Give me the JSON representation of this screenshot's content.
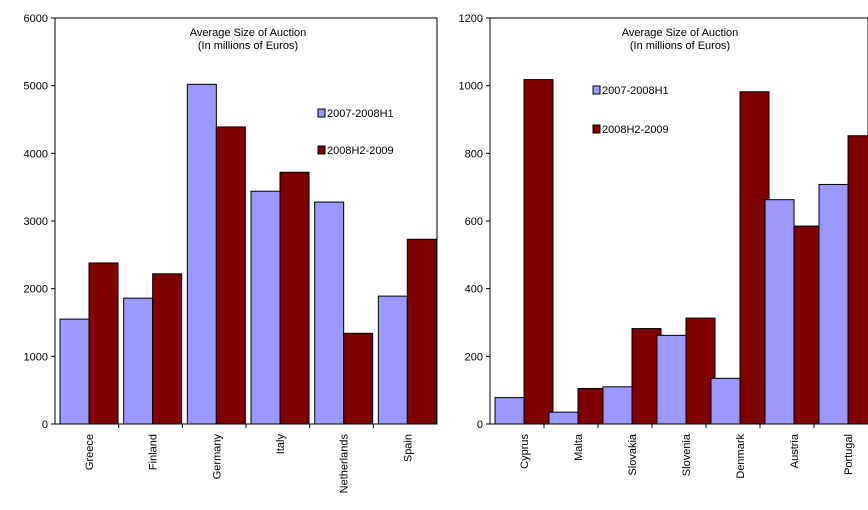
{
  "chart_data": [
    {
      "type": "bar",
      "title": "Average Size of Auction",
      "subtitle": "(In millions of Euros)",
      "categories": [
        "Greece",
        "Finland",
        "Germany",
        "Italy",
        "Netherlands",
        "Spain"
      ],
      "series": [
        {
          "name": "2007-2008H1",
          "values": [
            1550,
            1860,
            5020,
            3440,
            3280,
            1890
          ],
          "color": "#9999ff"
        },
        {
          "name": "2008H2-2009",
          "values": [
            2380,
            2220,
            4390,
            3720,
            1340,
            2730
          ],
          "color": "#800000"
        }
      ],
      "yticks": [
        0,
        1000,
        2000,
        3000,
        4000,
        5000,
        6000
      ],
      "ylim": [
        0,
        6000
      ],
      "grid": false,
      "legend_position": "right"
    },
    {
      "type": "bar",
      "title": "Average Size of Auction",
      "subtitle": "(In millions of Euros)",
      "categories": [
        "Cyprus",
        "Malta",
        "Slovakia",
        "Slovenia",
        "Denmark",
        "Austria",
        "Portugal"
      ],
      "series": [
        {
          "name": "2007-2008H1",
          "values": [
            78,
            35,
            110,
            262,
            135,
            663,
            708
          ],
          "color": "#9999ff"
        },
        {
          "name": "2008H2-2009",
          "values": [
            1018,
            105,
            282,
            313,
            982,
            585,
            852
          ],
          "color": "#800000"
        }
      ],
      "yticks": [
        0,
        200,
        400,
        600,
        800,
        1000,
        1200
      ],
      "ylim": [
        0,
        1200
      ],
      "grid": false,
      "legend_position": "top-left"
    }
  ]
}
